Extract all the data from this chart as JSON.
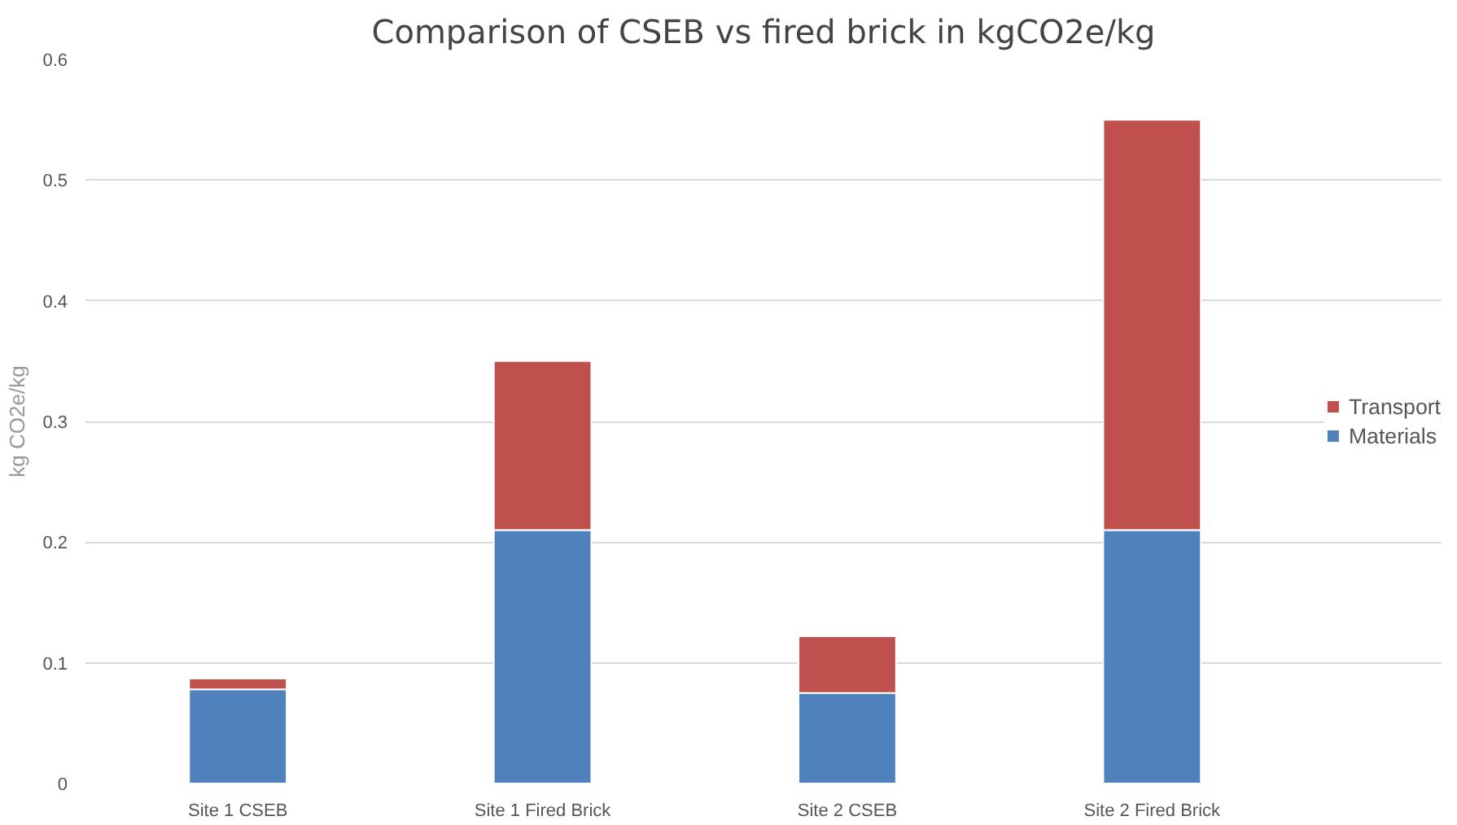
{
  "chart_data": {
    "type": "bar",
    "title": "Comparison of CSEB vs fired brick in kgCO2e/kg",
    "ylabel": "kg CO2e/kg",
    "categories": [
      "Site 1 CSEB",
      "Site 1 Fired Brick",
      "Site 2 CSEB",
      "Site 2 Fired Brick"
    ],
    "series": [
      {
        "name": "Materials",
        "color": "#4f81bd",
        "values": [
          0.078,
          0.21,
          0.075,
          0.21
        ]
      },
      {
        "name": "Transport",
        "color": "#c0504d",
        "values": [
          0.009,
          0.14,
          0.047,
          0.34
        ]
      }
    ],
    "stacked": true,
    "ylim": [
      0,
      0.6
    ],
    "yticks": [
      0,
      0.1,
      0.2,
      0.3,
      0.4,
      0.5,
      0.6
    ],
    "grid": "y",
    "legend": "right"
  }
}
